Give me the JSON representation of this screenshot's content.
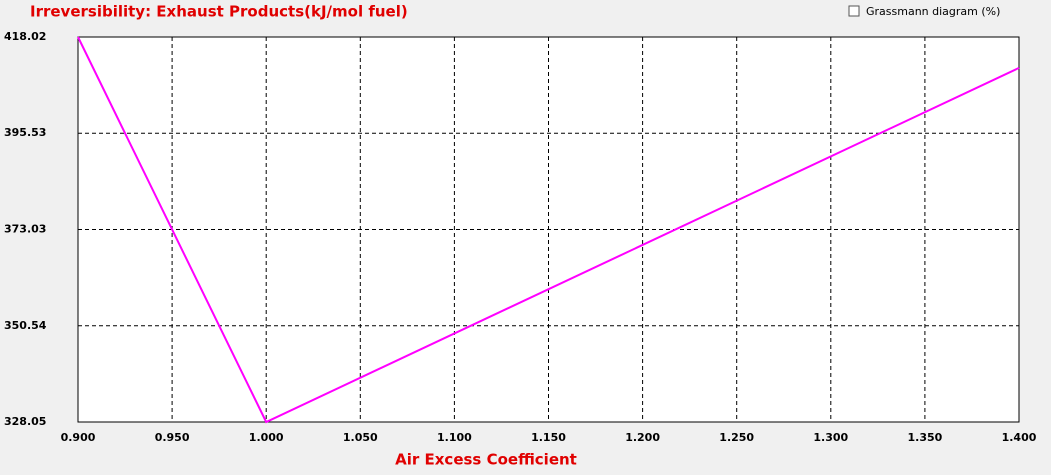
{
  "chart_data": {
    "type": "line",
    "title": "Irreversibility: Exhaust Products(kJ/mol fuel)",
    "x_label": "Air Excess Coefficient",
    "checkbox_label": "Grassmann diagram (%)",
    "x": [
      0.9,
      1.0,
      1.4
    ],
    "values": [
      418.02,
      328.05,
      410.8
    ],
    "color": "#ff00ff",
    "xlim": [
      0.9,
      1.4
    ],
    "xticks": [
      {
        "value": 0.9,
        "label": "0.900"
      },
      {
        "value": 0.95,
        "label": "0.950"
      },
      {
        "value": 1.0,
        "label": "1.000"
      },
      {
        "value": 1.05,
        "label": "1.050"
      },
      {
        "value": 1.1,
        "label": "1.100"
      },
      {
        "value": 1.15,
        "label": "1.150"
      },
      {
        "value": 1.2,
        "label": "1.200"
      },
      {
        "value": 1.25,
        "label": "1.250"
      },
      {
        "value": 1.3,
        "label": "1.300"
      },
      {
        "value": 1.35,
        "label": "1.350"
      },
      {
        "value": 1.4,
        "label": "1.400"
      }
    ],
    "ylim": [
      328.05,
      418.02
    ],
    "yticks": [
      328.05,
      350.54,
      373.03,
      395.53,
      418.02
    ],
    "grid": true
  }
}
